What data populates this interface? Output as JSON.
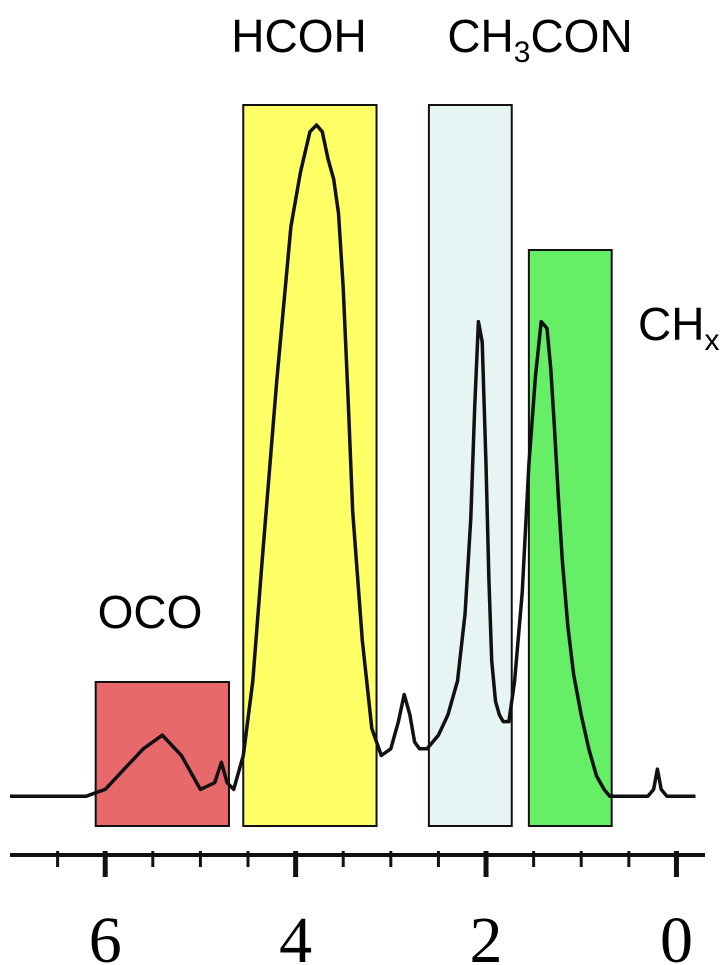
{
  "chart_data": {
    "type": "line",
    "title": "",
    "xlabel": "",
    "ylabel": "",
    "x_axis_reversed": true,
    "xlim": [
      7.0,
      -0.3
    ],
    "x_ticks": [
      6,
      4,
      2,
      0
    ],
    "x_tick_labels": [
      "6",
      "4",
      "2",
      "0"
    ],
    "grid": false,
    "legend": "none",
    "regions": [
      {
        "label": "OCO",
        "sub": "",
        "x_from": 6.1,
        "x_to": 4.7,
        "color": "#e8696b"
      },
      {
        "label": "HCOH",
        "sub": "",
        "x_from": 4.55,
        "x_to": 3.15,
        "color": "#ffff66"
      },
      {
        "label": "CH",
        "sub_script": "3",
        "label_suffix": "CON",
        "x_from": 2.6,
        "x_to": 1.73,
        "color": "#e6f4f4"
      },
      {
        "label": "CH",
        "sub_script": "x",
        "x_from": 1.55,
        "x_to": 0.68,
        "color": "#66ee66"
      }
    ],
    "series": [
      {
        "values_note": "",
        "x": [
          7.0,
          6.6,
          6.2,
          6.0,
          5.8,
          5.6,
          5.4,
          5.2,
          5.0,
          4.85,
          4.78,
          4.72,
          4.65,
          4.55,
          4.45,
          4.35,
          4.2,
          4.05,
          3.95,
          3.85,
          3.78,
          3.72,
          3.66,
          3.6,
          3.55,
          3.5,
          3.45,
          3.4,
          3.3,
          3.2,
          3.1,
          3.0,
          2.92,
          2.86,
          2.8,
          2.75,
          2.7,
          2.62,
          2.5,
          2.4,
          2.3,
          2.22,
          2.16,
          2.12,
          2.08,
          2.04,
          2.0,
          1.97,
          1.94,
          1.9,
          1.86,
          1.82,
          1.76,
          1.7,
          1.62,
          1.55,
          1.48,
          1.42,
          1.36,
          1.32,
          1.28,
          1.24,
          1.2,
          1.14,
          1.08,
          1.0,
          0.92,
          0.84,
          0.76,
          0.7,
          0.6,
          0.5,
          0.4,
          0.3,
          0.24,
          0.2,
          0.16,
          0.1,
          0.0,
          -0.2
        ],
        "y": [
          0.01,
          0.01,
          0.01,
          0.02,
          0.05,
          0.08,
          0.1,
          0.07,
          0.02,
          0.03,
          0.06,
          0.03,
          0.02,
          0.07,
          0.18,
          0.36,
          0.62,
          0.85,
          0.93,
          0.99,
          1.0,
          0.99,
          0.95,
          0.92,
          0.87,
          0.76,
          0.6,
          0.43,
          0.24,
          0.11,
          0.07,
          0.08,
          0.12,
          0.16,
          0.13,
          0.09,
          0.08,
          0.08,
          0.1,
          0.13,
          0.18,
          0.28,
          0.42,
          0.58,
          0.71,
          0.68,
          0.5,
          0.33,
          0.21,
          0.15,
          0.13,
          0.12,
          0.12,
          0.18,
          0.31,
          0.5,
          0.63,
          0.71,
          0.7,
          0.64,
          0.55,
          0.45,
          0.36,
          0.26,
          0.19,
          0.13,
          0.08,
          0.04,
          0.02,
          0.01,
          0.01,
          0.01,
          0.01,
          0.01,
          0.02,
          0.05,
          0.02,
          0.01,
          0.01,
          0.01
        ]
      }
    ]
  }
}
